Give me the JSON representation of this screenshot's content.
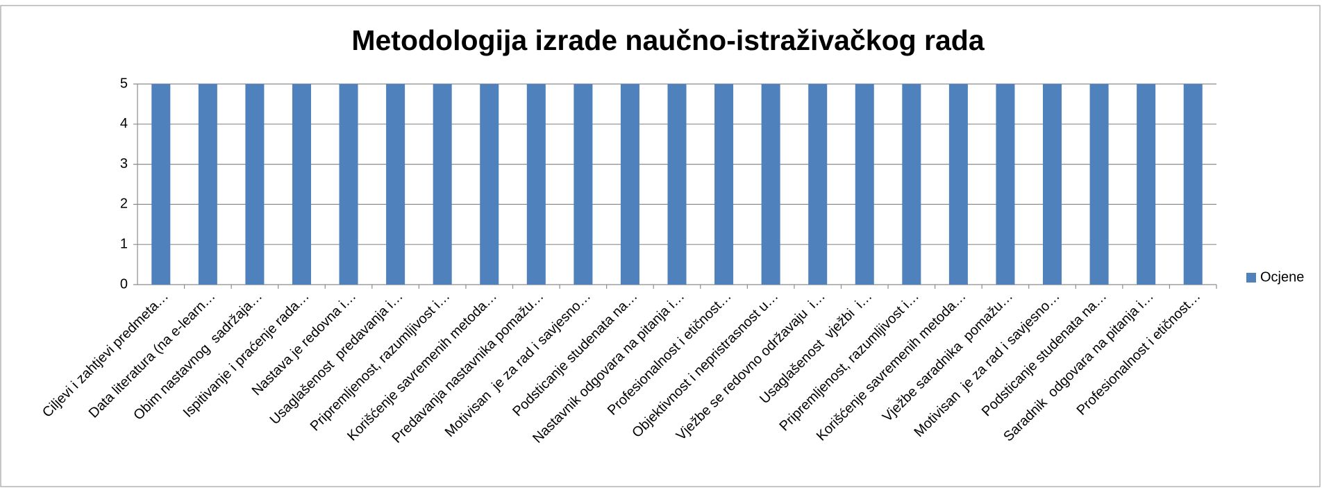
{
  "chart_data": {
    "type": "bar",
    "title": "Metodologija izrade naučno-istraživačkog rada",
    "categories": [
      "Ciljevi i zahtjevi predmeta…",
      "Data literatura (na e-learn…",
      "Obim nastavnog  sadržaja…",
      "Ispitivanje i praćenje rada…",
      "Nastava je redovna i…",
      "Usaglašenost  predavanja i…",
      "Pripremljenost, razumljivost i…",
      "Korišćenje savremenih metoda…",
      "Predavanja nastavnika pomažu…",
      "Motivisan  je za rad i savjesno…",
      "Podsticanje studenata na…",
      "Nastavnik odgovara na pitanja i…",
      "Profesionalnost i etičnost…",
      "Objektivnost i nepristrasnost u…",
      "Vježbe se redovno održavaju  i…",
      "Usaglašenost  vježbi  i…",
      "Pripremljenost, razumljivost i…",
      "Korišćenje savremenih metoda…",
      "Vježbe saradnika  pomažu…",
      "Motivisan  je za rad i savjesno…",
      "Podsticanje studenata na…",
      "Saradnik  odgovara na pitanja i…",
      "Profesionalnost i etičnost…"
    ],
    "series": [
      {
        "name": "Ocjene",
        "color": "#4f81bd",
        "values": [
          5,
          5,
          5,
          5,
          5,
          5,
          5,
          5,
          5,
          5,
          5,
          5,
          5,
          5,
          5,
          5,
          5,
          5,
          5,
          5,
          5,
          5,
          5
        ]
      }
    ],
    "ylim": [
      0,
      5
    ],
    "yticks": [
      0,
      1,
      2,
      3,
      4,
      5
    ],
    "grid": true,
    "legend": "right"
  }
}
